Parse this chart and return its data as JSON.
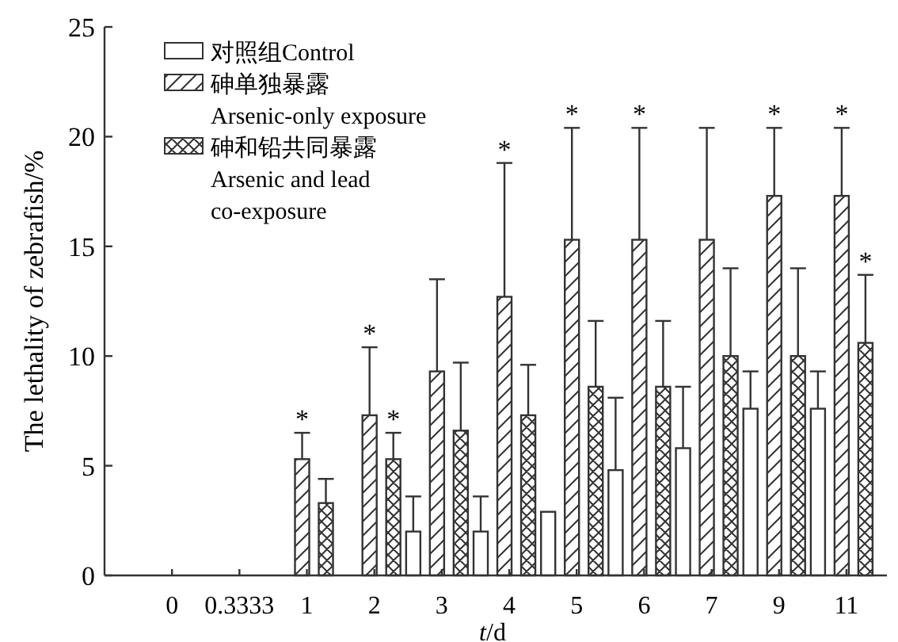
{
  "chart_data": {
    "type": "bar",
    "xlabel": "*t*/d",
    "ylabel": "The lethality of zebrafish/%",
    "categories": [
      "0",
      "0.3333",
      "1",
      "2",
      "3",
      "4",
      "5",
      "6",
      "7",
      "9",
      "11"
    ],
    "ylim": [
      0,
      25
    ],
    "yticks": [
      0,
      5,
      10,
      15,
      20,
      25
    ],
    "legend": "top left",
    "series": [
      {
        "name": "对照组Control",
        "color": "#ffffff",
        "values": [
          0,
          0,
          0,
          0,
          2.0,
          2.0,
          2.9,
          4.8,
          5.8,
          7.6,
          7.6
        ],
        "errors": [
          null,
          null,
          null,
          null,
          [
            2.0,
            3.6
          ],
          [
            2.0,
            3.6
          ],
          null,
          [
            4.8,
            8.1
          ],
          [
            5.8,
            8.6
          ],
          [
            7.6,
            9.3
          ],
          [
            7.6,
            9.3
          ]
        ]
      },
      {
        "name": "砷单独暴露\nArsenic-only exposure",
        "color": "#333333",
        "values": [
          0,
          0,
          5.3,
          7.3,
          9.3,
          12.7,
          15.3,
          15.3,
          15.3,
          17.3,
          17.3
        ],
        "errors": [
          null,
          null,
          [
            5.3,
            6.5
          ],
          [
            7.3,
            10.4
          ],
          [
            9.3,
            13.5
          ],
          [
            12.7,
            18.8
          ],
          [
            15.3,
            20.4
          ],
          [
            15.3,
            20.4
          ],
          [
            15.3,
            20.4
          ],
          [
            17.3,
            20.4
          ],
          [
            17.3,
            20.4
          ]
        ]
      },
      {
        "name": "砷和铅共同暴露\nArsenic and lead\nco-exposure",
        "color": "#333333",
        "values": [
          0,
          0,
          3.3,
          5.3,
          6.6,
          7.3,
          8.6,
          8.6,
          10.0,
          10.0,
          10.6
        ],
        "errors": [
          null,
          null,
          [
            3.3,
            4.4
          ],
          [
            5.3,
            6.5
          ],
          [
            6.6,
            9.7
          ],
          [
            7.3,
            9.6
          ],
          [
            8.6,
            11.6
          ],
          [
            8.6,
            11.6
          ],
          [
            10.0,
            14.0
          ],
          [
            10.0,
            14.0
          ],
          [
            10.6,
            13.7
          ]
        ]
      }
    ],
    "annotations": [
      {
        "text": "*",
        "x": "1",
        "y": 6.5
      },
      {
        "text": "*",
        "x": "2",
        "y": 10.4
      },
      {
        "text": "*",
        "x": "2",
        "y": 6.5
      },
      {
        "text": "*",
        "x": "4",
        "y": 18.8
      },
      {
        "text": "*",
        "x": "5",
        "y": 20.4
      },
      {
        "text": "*",
        "x": "6",
        "y": 20.4
      },
      {
        "text": "*",
        "x": "9",
        "y": 20.4
      },
      {
        "text": "*",
        "x": "11",
        "y": 20.4
      },
      {
        "text": "*",
        "x": "11",
        "y": 13.7
      }
    ]
  }
}
